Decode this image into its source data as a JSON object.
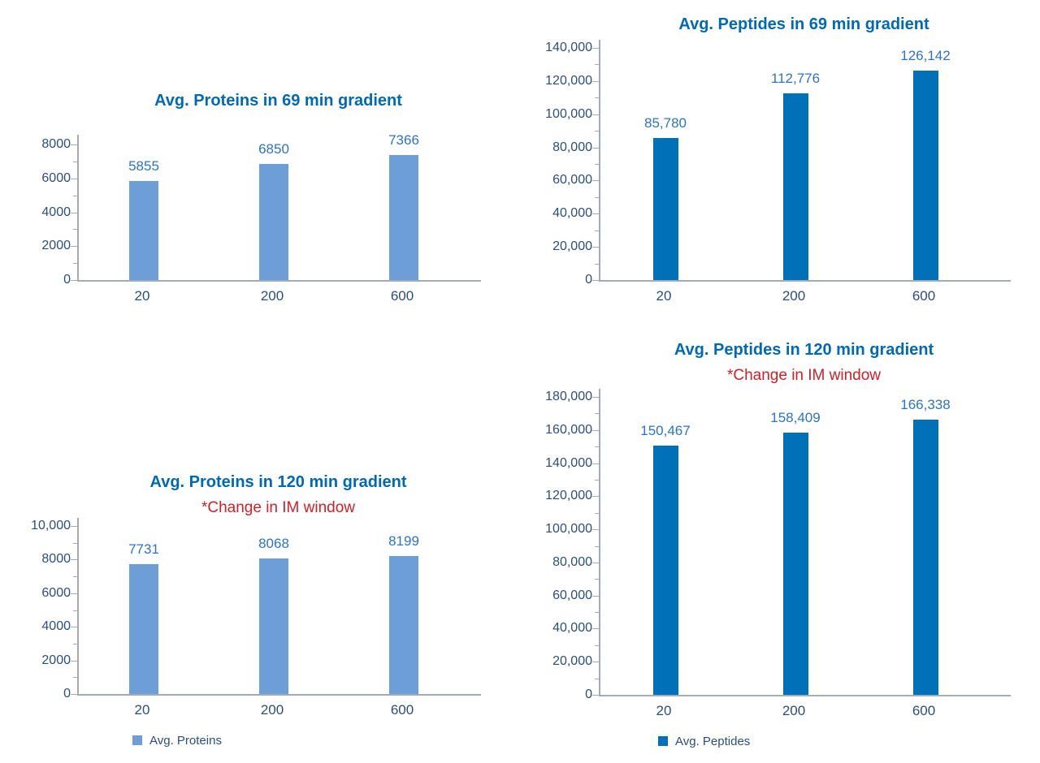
{
  "colors": {
    "title_blue": "#0069B4",
    "subtitle_red": "#CE2127",
    "axis_label_navy": "#2B4E7E",
    "value_label_blue": "#2F74C0",
    "axis_line": "#A5ABB2",
    "bar_light_blue": "#6D9ED8",
    "bar_dark_blue": "#0070B8"
  },
  "chart_data": [
    {
      "type": "bar",
      "title": "Avg. Proteins in 69 min gradient",
      "subtitle": "",
      "categories": [
        "20",
        "200",
        "600"
      ],
      "values": [
        5855,
        6850,
        7366
      ],
      "data_labels": [
        "5855",
        "6850",
        "7366"
      ],
      "xlabel": "",
      "ylabel": "",
      "ylim": [
        0,
        8000
      ],
      "ytick_step": 2000,
      "ytick_labels": [
        "0",
        "2000",
        "4000",
        "6000",
        "8000"
      ],
      "grid": false,
      "bar_color": "#6D9ED8",
      "legend": null
    },
    {
      "type": "bar",
      "title": "Avg. Peptides in 69 min gradient",
      "subtitle": "",
      "categories": [
        "20",
        "200",
        "600"
      ],
      "values": [
        85780,
        112776,
        126142
      ],
      "data_labels": [
        "85,780",
        "112,776",
        "126,142"
      ],
      "xlabel": "",
      "ylabel": "",
      "ylim": [
        0,
        140000
      ],
      "ytick_step": 20000,
      "ytick_labels": [
        "0",
        "20,000",
        "40,000",
        "60,000",
        "80,000",
        "100,000",
        "120,000",
        "140,000"
      ],
      "grid": false,
      "bar_color": "#0070B8",
      "legend": null
    },
    {
      "type": "bar",
      "title": "Avg. Proteins in 120 min gradient",
      "subtitle": "*Change in IM window",
      "categories": [
        "20",
        "200",
        "600"
      ],
      "values": [
        7731,
        8068,
        8199
      ],
      "data_labels": [
        "7731",
        "8068",
        "8199"
      ],
      "xlabel": "",
      "ylabel": "",
      "ylim": [
        0,
        10000
      ],
      "ytick_step": 2000,
      "ytick_labels": [
        "0",
        "2000",
        "4000",
        "6000",
        "8000",
        "10,000"
      ],
      "grid": false,
      "bar_color": "#6D9ED8",
      "legend": {
        "label": "Avg. Proteins",
        "position": "bottom"
      }
    },
    {
      "type": "bar",
      "title": "Avg. Peptides in 120 min gradient",
      "subtitle": "*Change in IM window",
      "categories": [
        "20",
        "200",
        "600"
      ],
      "values": [
        150467,
        158409,
        166338
      ],
      "data_labels": [
        "150,467",
        "158,409",
        "166,338"
      ],
      "xlabel": "",
      "ylabel": "",
      "ylim": [
        0,
        180000
      ],
      "ytick_step": 20000,
      "ytick_labels": [
        "0",
        "20,000",
        "40,000",
        "60,000",
        "80,000",
        "100,000",
        "120,000",
        "140,000",
        "160,000",
        "180,000"
      ],
      "grid": false,
      "bar_color": "#0070B8",
      "legend": {
        "label": "Avg. Peptides",
        "position": "bottom"
      }
    }
  ]
}
